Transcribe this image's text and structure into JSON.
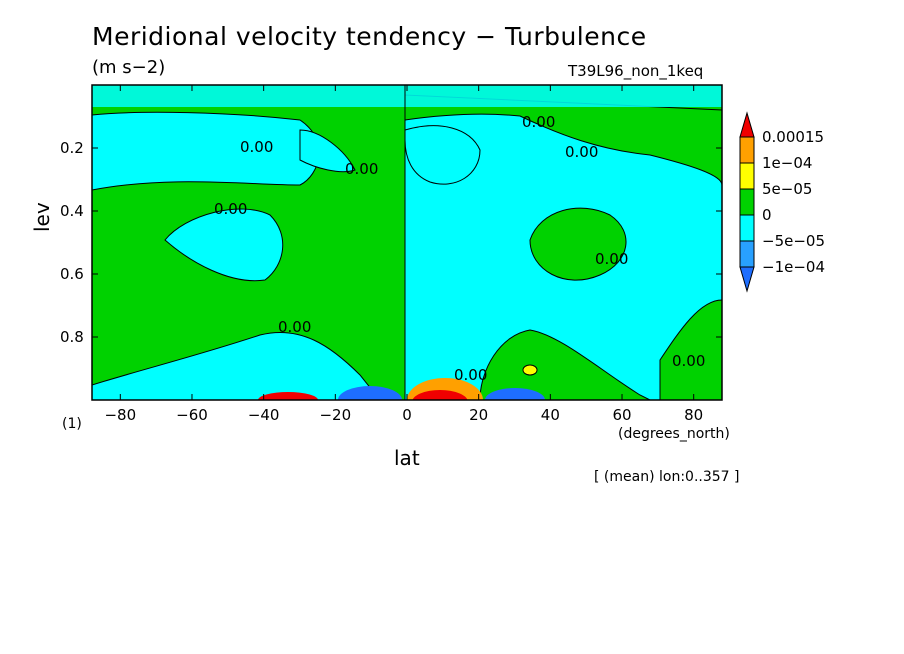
{
  "chart_data": {
    "type": "heatmap",
    "title": "Meridional velocity tendency − Turbulence",
    "units": "(m s−2)",
    "run_label": "T39L96_non_1keq",
    "xlabel": "lat",
    "ylabel": "lev",
    "x_units": "(degrees_north)",
    "y_axis_scale_note": "(1)",
    "mean_note": "[ (mean) lon:0..357 ]",
    "xlim": [
      -87.9,
      87.9
    ],
    "ylim": [
      1.0,
      0.0
    ],
    "x_ticks": [
      "−80",
      "−60",
      "−40",
      "−20",
      "0",
      "20",
      "40",
      "60",
      "80"
    ],
    "x_tick_values": [
      -80,
      -60,
      -40,
      -20,
      0,
      20,
      40,
      60,
      80
    ],
    "y_ticks": [
      "0.2",
      "0.4",
      "0.6",
      "0.8"
    ],
    "y_tick_values": [
      0.2,
      0.4,
      0.6,
      0.8
    ],
    "contour_labels": [
      "0.00"
    ],
    "colorbar": {
      "labels": [
        "0.00015",
        "1e−04",
        "5e−05",
        "0",
        "−5e−05",
        "−1e−04"
      ],
      "levels": [
        -0.00015,
        -0.0001,
        -5e-05,
        0,
        5e-05,
        0.0001,
        0.00015
      ],
      "colors": [
        "#1e6eff",
        "#28a0ff",
        "#00ffff",
        "#00d200",
        "#ffff00",
        "#ffa000",
        "#f00000"
      ]
    },
    "field_regions": [
      {
        "name": "upper-positive-band",
        "lat": [
          -88,
          88
        ],
        "lev": [
          0.0,
          0.1
        ],
        "sign": "mixed"
      },
      {
        "name": "sh-midlat-negative",
        "lat": [
          -75,
          -40
        ],
        "lev": [
          0.36,
          0.6
        ],
        "sign": "negative"
      },
      {
        "name": "nh-midlat-negative-low",
        "lat": [
          0,
          88
        ],
        "lev": [
          0.55,
          0.98
        ],
        "sign": "negative"
      },
      {
        "name": "sh-near-surface-max",
        "lat": [
          -40,
          -30
        ],
        "lev": [
          0.97,
          1.0
        ],
        "sign": "positive-strong"
      },
      {
        "name": "sh-near-surface-min",
        "lat": [
          -20,
          -5
        ],
        "lev": [
          0.96,
          1.0
        ],
        "sign": "negative-strong"
      },
      {
        "name": "nh-near-surface-max",
        "lat": [
          3,
          20
        ],
        "lev": [
          0.95,
          1.0
        ],
        "sign": "positive-strong"
      },
      {
        "name": "nh-near-surface-min",
        "lat": [
          22,
          38
        ],
        "lev": [
          0.96,
          1.0
        ],
        "sign": "negative-strong"
      }
    ]
  }
}
